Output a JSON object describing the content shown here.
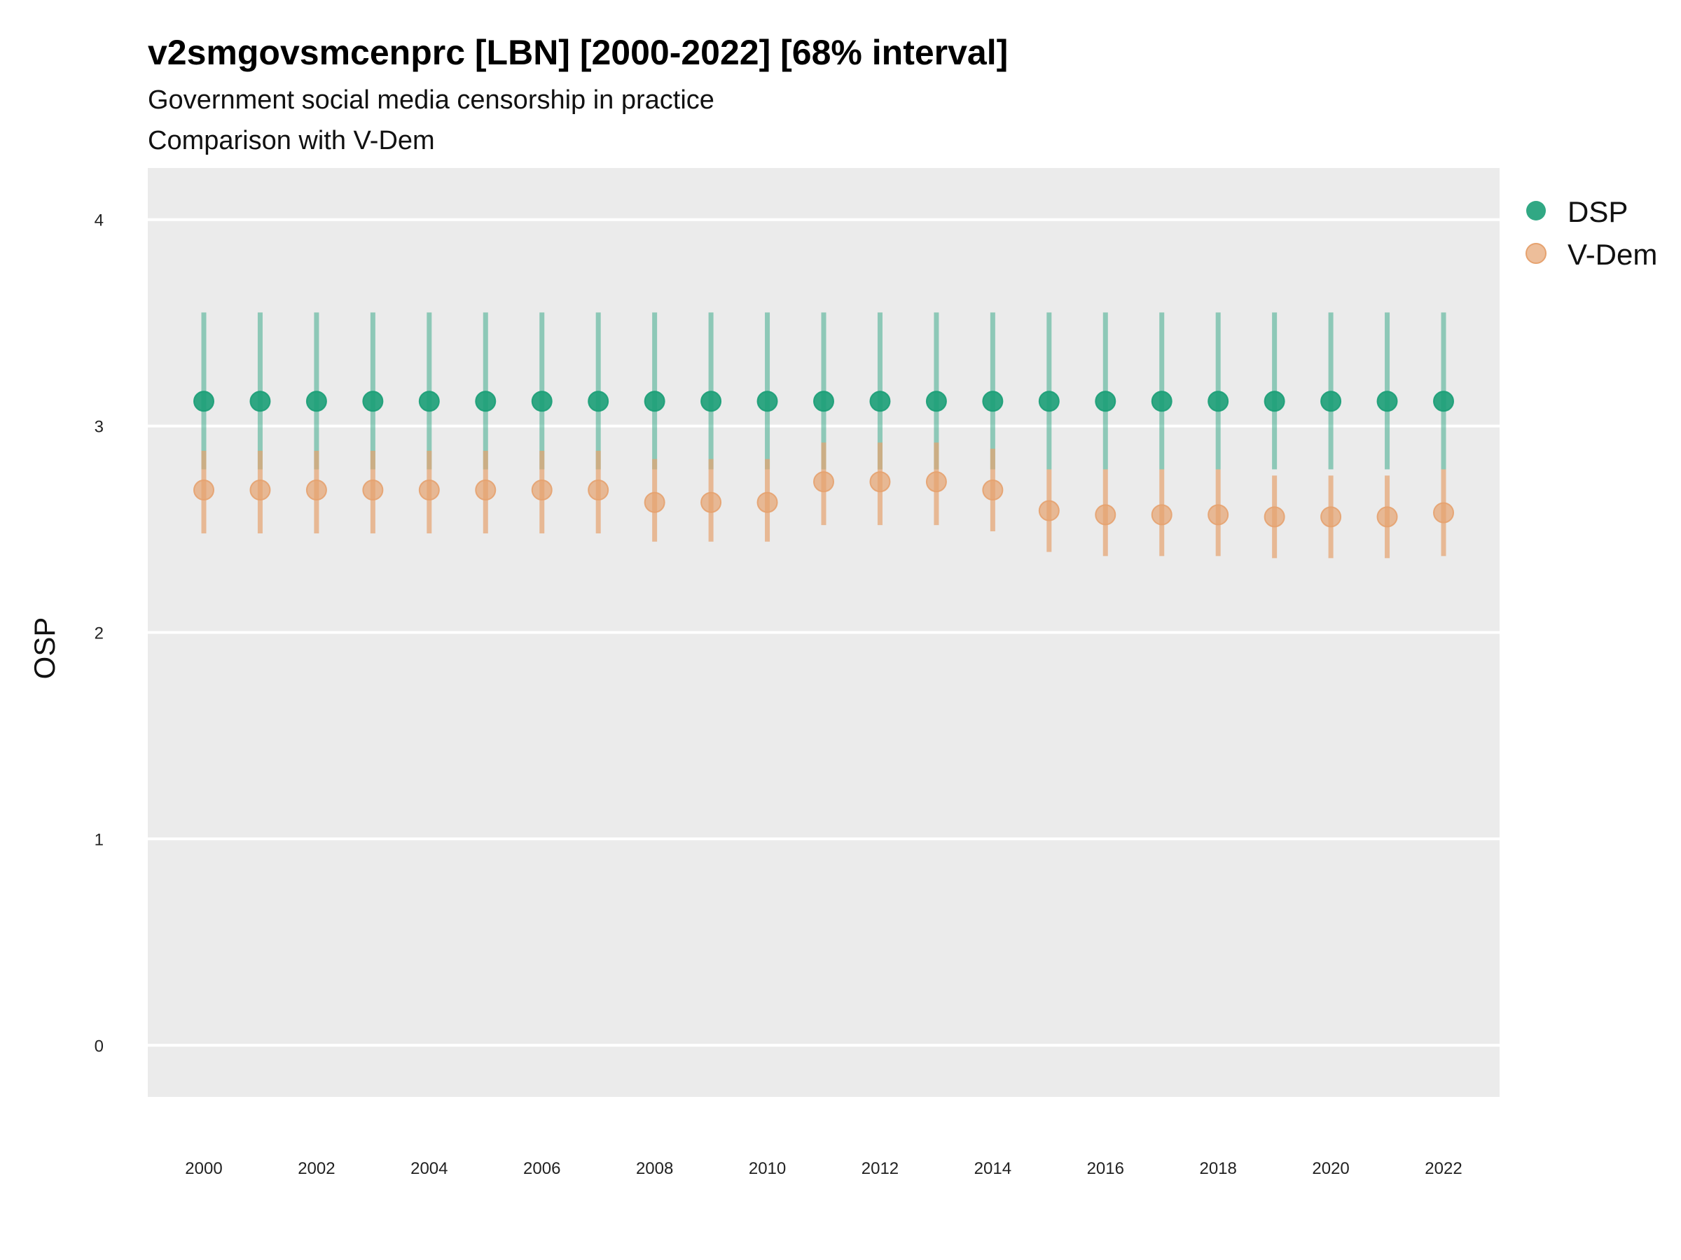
{
  "title": "v2smgovsmcenprc [LBN] [2000-2022] [68% interval]",
  "subtitle": "Government social media censorship in practice",
  "subtitle2": "Comparison with V-Dem",
  "colors": {
    "panel": "#ebebeb",
    "grid": "#ffffff",
    "dsp": "#1b9e77",
    "vdem": "#e6a26f"
  },
  "chart_data": {
    "type": "scatter",
    "ylabel": "OSP",
    "xlabel": "",
    "ylim": [
      -0.25,
      4.25
    ],
    "yticks": [
      "0",
      "1",
      "2",
      "3",
      "4"
    ],
    "xtick_labels": [
      "2000",
      "2002",
      "2004",
      "2006",
      "2008",
      "2010",
      "2012",
      "2014",
      "2016",
      "2018",
      "2020",
      "2022"
    ],
    "x": [
      2000,
      2001,
      2002,
      2003,
      2004,
      2005,
      2006,
      2007,
      2008,
      2009,
      2010,
      2011,
      2012,
      2013,
      2014,
      2015,
      2016,
      2017,
      2018,
      2019,
      2020,
      2021,
      2022
    ],
    "legend_position": "right",
    "series": [
      {
        "name": "DSP",
        "color": "#1b9e77",
        "values": [
          3.12,
          3.12,
          3.12,
          3.12,
          3.12,
          3.12,
          3.12,
          3.12,
          3.12,
          3.12,
          3.12,
          3.12,
          3.12,
          3.12,
          3.12,
          3.12,
          3.12,
          3.12,
          3.12,
          3.12,
          3.12,
          3.12,
          3.12
        ],
        "lower": [
          2.79,
          2.79,
          2.79,
          2.79,
          2.79,
          2.79,
          2.79,
          2.79,
          2.79,
          2.79,
          2.79,
          2.79,
          2.79,
          2.79,
          2.79,
          2.79,
          2.79,
          2.79,
          2.79,
          2.79,
          2.79,
          2.79,
          2.79
        ],
        "upper": [
          3.55,
          3.55,
          3.55,
          3.55,
          3.55,
          3.55,
          3.55,
          3.55,
          3.55,
          3.55,
          3.55,
          3.55,
          3.55,
          3.55,
          3.55,
          3.55,
          3.55,
          3.55,
          3.55,
          3.55,
          3.55,
          3.55,
          3.55
        ]
      },
      {
        "name": "V-Dem",
        "color": "#e6a26f",
        "values": [
          2.69,
          2.69,
          2.69,
          2.69,
          2.69,
          2.69,
          2.69,
          2.69,
          2.63,
          2.63,
          2.63,
          2.73,
          2.73,
          2.73,
          2.69,
          2.59,
          2.57,
          2.57,
          2.57,
          2.56,
          2.56,
          2.56,
          2.58
        ],
        "lower": [
          2.48,
          2.48,
          2.48,
          2.48,
          2.48,
          2.48,
          2.48,
          2.48,
          2.44,
          2.44,
          2.44,
          2.52,
          2.52,
          2.52,
          2.49,
          2.39,
          2.37,
          2.37,
          2.37,
          2.36,
          2.36,
          2.36,
          2.37
        ],
        "upper": [
          2.88,
          2.88,
          2.88,
          2.88,
          2.88,
          2.88,
          2.88,
          2.88,
          2.84,
          2.84,
          2.84,
          2.92,
          2.92,
          2.92,
          2.89,
          2.79,
          2.79,
          2.79,
          2.79,
          2.76,
          2.76,
          2.76,
          2.79
        ]
      }
    ]
  }
}
